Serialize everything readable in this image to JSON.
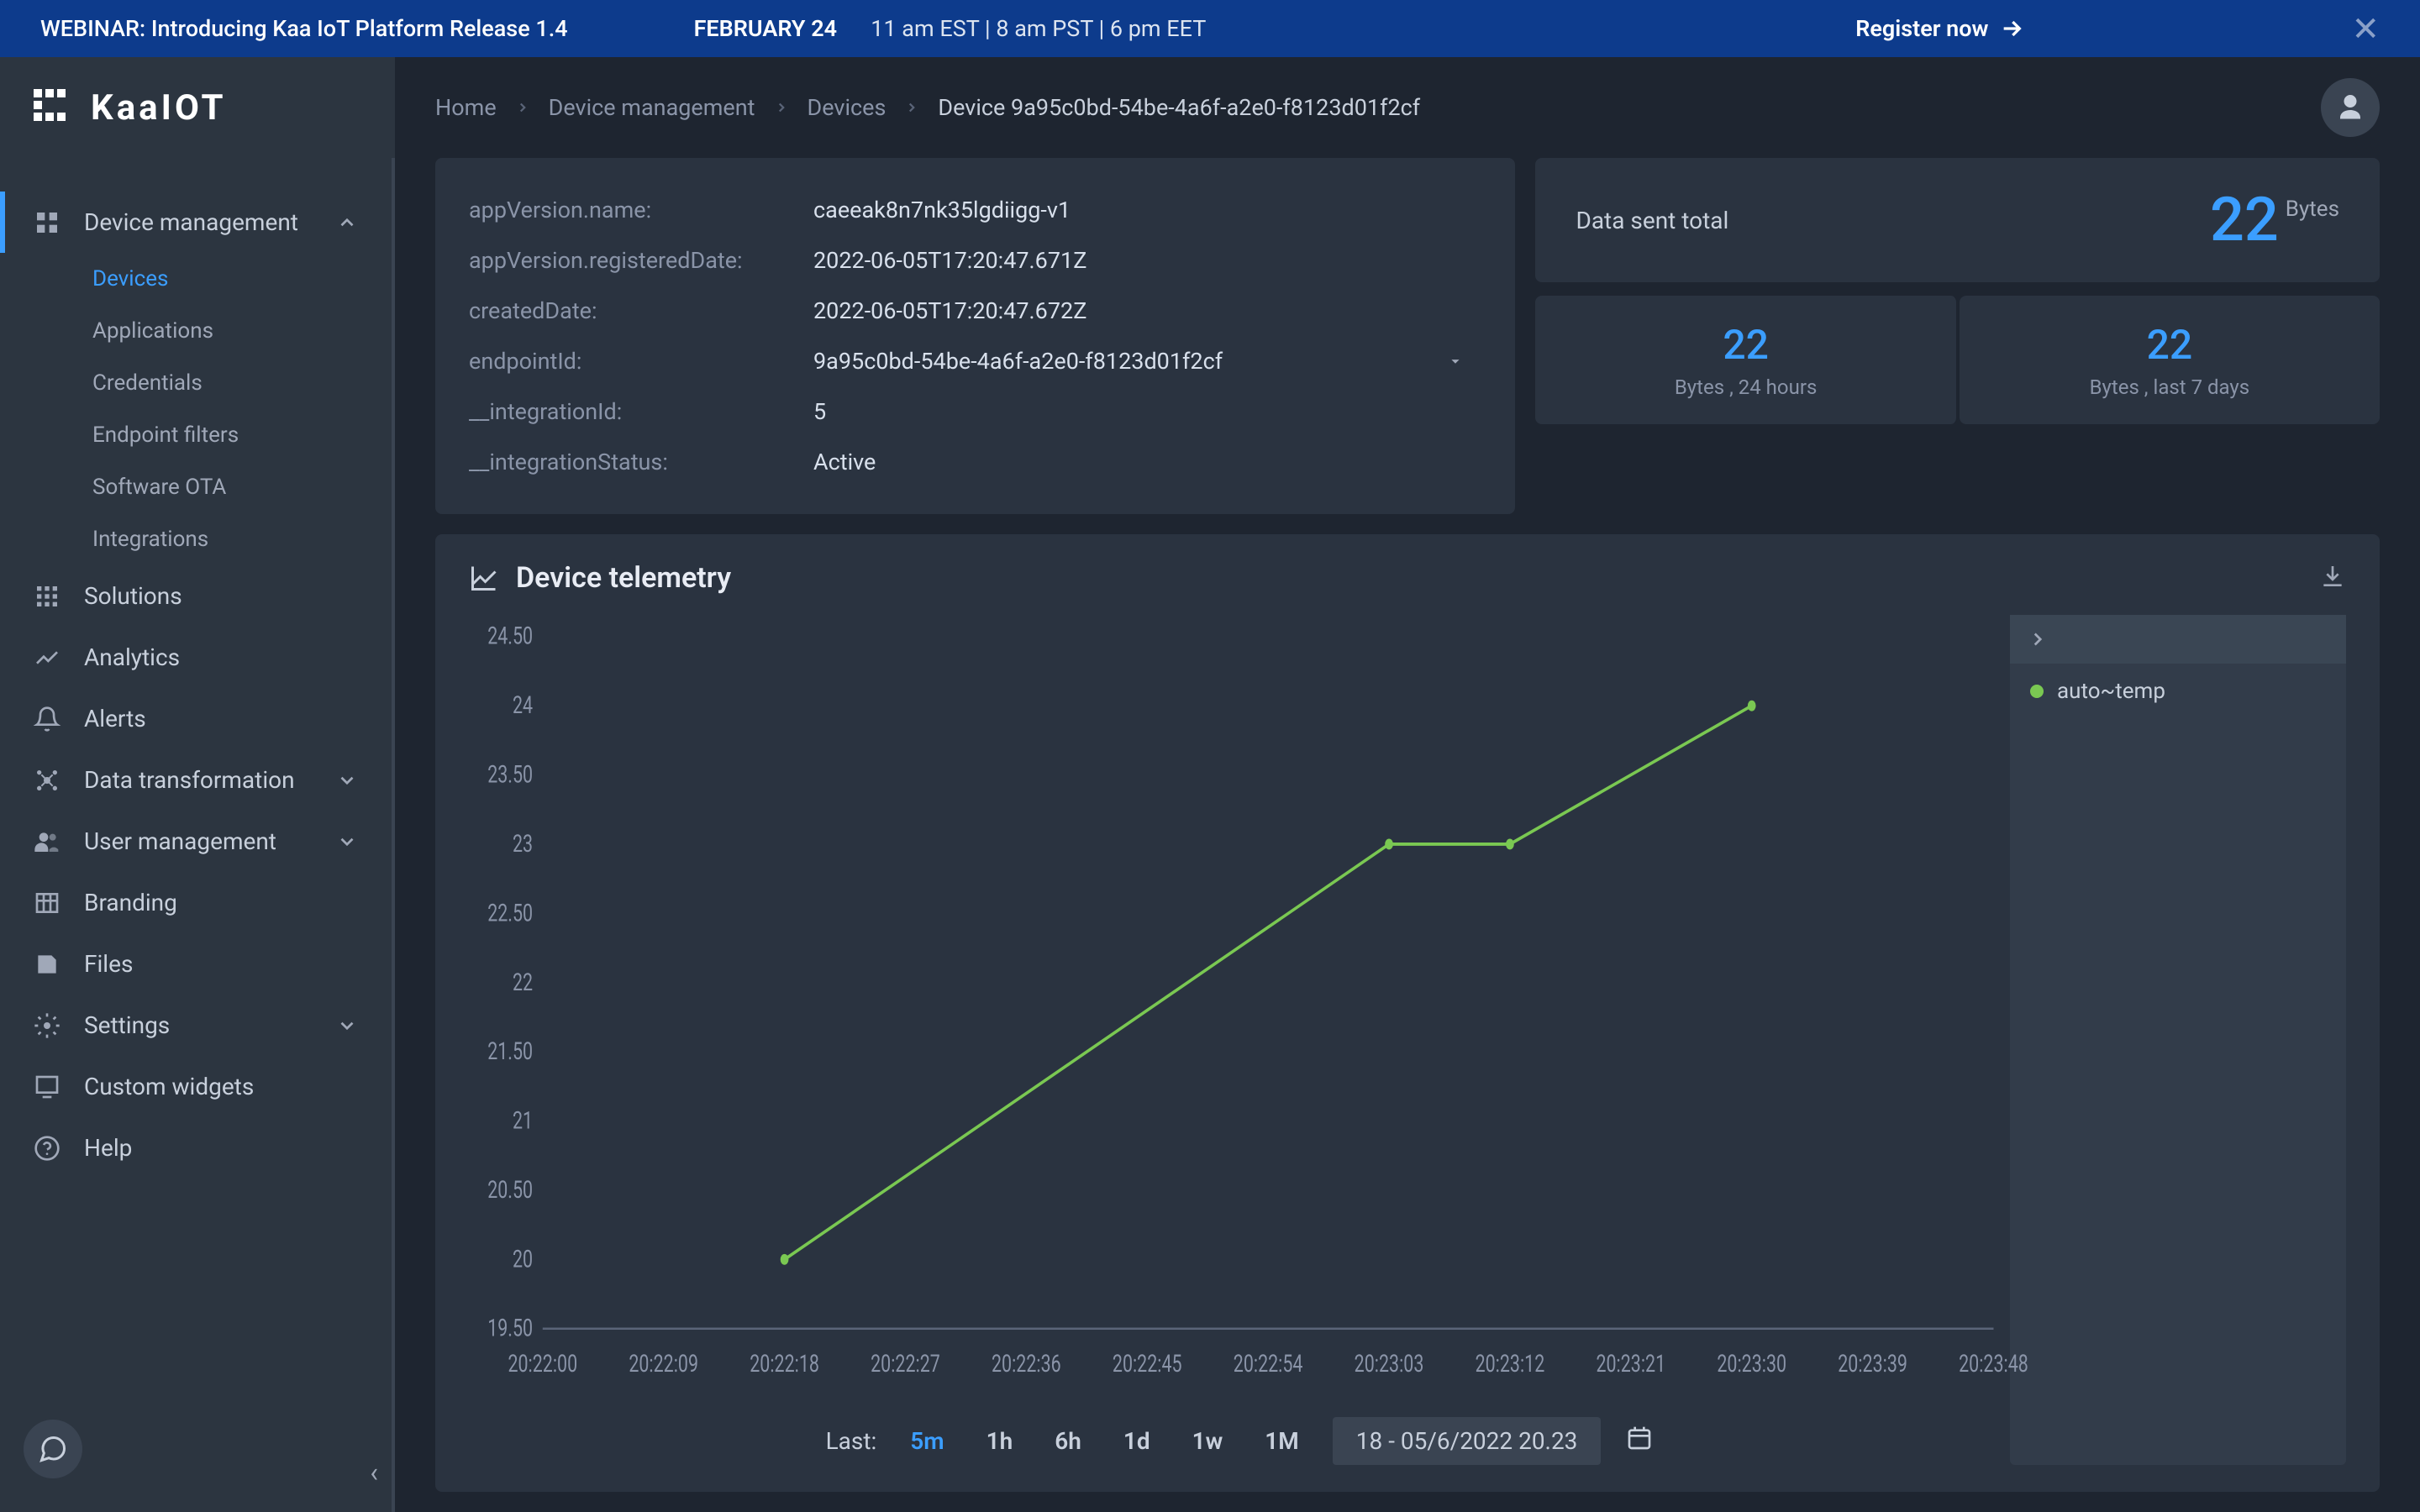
{
  "banner": {
    "title": "WEBINAR: Introducing Kaa IoT Platform Release 1.4",
    "date": "FEBRUARY 24",
    "times": "11 am EST   |   8 am PST   |   6 pm EET",
    "register": "Register now"
  },
  "logo": {
    "text": "KaaIOT"
  },
  "sidebar": {
    "items": [
      {
        "label": "Device management",
        "expandable": true,
        "expanded": true,
        "active_parent": true
      },
      {
        "label": "Solutions",
        "expandable": false
      },
      {
        "label": "Analytics",
        "expandable": false
      },
      {
        "label": "Alerts",
        "expandable": false
      },
      {
        "label": "Data transformation",
        "expandable": true
      },
      {
        "label": "User management",
        "expandable": true
      },
      {
        "label": "Branding",
        "expandable": false
      },
      {
        "label": "Files",
        "expandable": false
      },
      {
        "label": "Settings",
        "expandable": true
      },
      {
        "label": "Custom widgets",
        "expandable": false
      },
      {
        "label": "Help",
        "expandable": false
      }
    ],
    "device_subs": [
      {
        "label": "Devices",
        "active": true
      },
      {
        "label": "Applications"
      },
      {
        "label": "Credentials"
      },
      {
        "label": "Endpoint filters"
      },
      {
        "label": "Software OTA"
      },
      {
        "label": "Integrations"
      }
    ]
  },
  "breadcrumb": [
    {
      "label": "Home"
    },
    {
      "label": "Device management"
    },
    {
      "label": "Devices"
    },
    {
      "label": "Device 9a95c0bd-54be-4a6f-a2e0-f8123d01f2cf",
      "current": true
    }
  ],
  "details": [
    {
      "label": "appVersion.name:",
      "value": "caeeak8n7nk35lgdiigg-v1"
    },
    {
      "label": "appVersion.registeredDate:",
      "value": "2022-06-05T17:20:47.671Z"
    },
    {
      "label": "createdDate:",
      "value": "2022-06-05T17:20:47.672Z"
    },
    {
      "label": "endpointId:",
      "value": "9a95c0bd-54be-4a6f-a2e0-f8123d01f2cf",
      "select": true
    },
    {
      "label": "__integrationId:",
      "value": "5"
    },
    {
      "label": "__integrationStatus:",
      "value": "Active"
    }
  ],
  "stats": {
    "total": {
      "label": "Data sent total",
      "value": "22",
      "unit": "Bytes"
    },
    "small": [
      {
        "value": "22",
        "sub": "Bytes , 24 hours"
      },
      {
        "value": "22",
        "sub": "Bytes , last 7 days"
      }
    ]
  },
  "telemetry": {
    "title": "Device telemetry",
    "legend": [
      {
        "label": "auto~temp",
        "color": "#7ac852"
      }
    ],
    "chart": {
      "type": "line",
      "line_color": "#7ac852",
      "line_width": 3,
      "marker_color": "#7ac852",
      "marker_size": 5,
      "background_color": "#2a3340",
      "grid_color": "#3a4452",
      "baseline_color": "#5a6478",
      "ylim": [
        19.5,
        24.5
      ],
      "ytick_step": 0.5,
      "y_ticks": [
        19.5,
        20,
        20.5,
        21,
        21.5,
        22,
        22.5,
        23,
        23.5,
        24,
        24.5
      ],
      "x_ticks": [
        "20:22:00",
        "20:22:09",
        "20:22:18",
        "20:22:27",
        "20:22:36",
        "20:22:45",
        "20:22:54",
        "20:23:03",
        "20:23:12",
        "20:23:21",
        "20:23:30",
        "20:23:39",
        "20:23:48"
      ],
      "points": [
        {
          "x": "20:22:18",
          "y": 20
        },
        {
          "x": "20:23:03",
          "y": 23
        },
        {
          "x": "20:23:12",
          "y": 23
        },
        {
          "x": "20:23:30",
          "y": 24
        }
      ]
    },
    "time": {
      "label": "Last:",
      "options": [
        "5m",
        "1h",
        "6h",
        "1d",
        "1w",
        "1M"
      ],
      "active": "5m",
      "range": "18 - 05/6/2022 20.23"
    }
  },
  "colors": {
    "accent": "#3b9eff",
    "green": "#7ac852",
    "panel_bg": "#2a3340",
    "page_bg": "#1e2530",
    "sidebar_bg": "#2c3540"
  }
}
